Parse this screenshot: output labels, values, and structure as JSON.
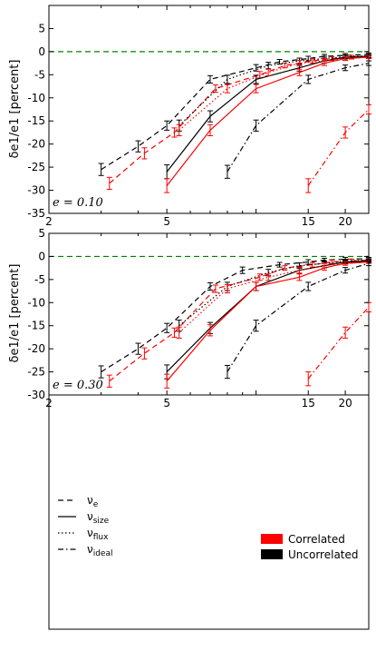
{
  "chart_data": [
    {
      "type": "line",
      "annotation": "e = 0.10",
      "ylabel": "δe1/e1 [percent]",
      "xscale": "log",
      "xlim": [
        2,
        24
      ],
      "ylim": [
        -35,
        10
      ],
      "xticks": [
        2,
        5,
        15,
        20
      ],
      "yticks": [
        -35,
        -30,
        -25,
        -20,
        -15,
        -10,
        -5,
        0,
        5
      ],
      "reference_line": {
        "y": 0,
        "color": "#008000",
        "style": "dashed"
      },
      "series": [
        {
          "name": "νe",
          "condition": "Uncorrelated",
          "style": "dashed",
          "color": "#000000",
          "x": [
            3,
            4,
            5,
            7,
            10,
            12,
            15,
            17,
            20,
            24
          ],
          "y": [
            -25.5,
            -20.5,
            -16,
            -6,
            -3.5,
            -2.2,
            -1.5,
            -1,
            -0.8,
            -0.6
          ],
          "err": [
            1.3,
            1.2,
            1.0,
            0.8,
            0.7,
            0.5,
            0.5,
            0.4,
            0.4,
            0.3
          ]
        },
        {
          "name": "νe",
          "condition": "Correlated",
          "style": "dashed",
          "color": "#ff0000",
          "x": [
            3.2,
            4.2,
            5.3,
            7.3,
            10.3,
            12.5,
            15.5,
            18,
            21,
            24
          ],
          "y": [
            -28.5,
            -22,
            -17.5,
            -8,
            -5,
            -3,
            -2,
            -1.5,
            -1.2,
            -1
          ],
          "err": [
            1.3,
            1.2,
            1.0,
            0.8,
            0.7,
            0.5,
            0.5,
            0.4,
            0.4,
            0.3
          ]
        },
        {
          "name": "νsize",
          "condition": "Uncorrelated",
          "style": "solid",
          "color": "#000000",
          "x": [
            5,
            7,
            10,
            14,
            17,
            20,
            24
          ],
          "y": [
            -26,
            -14,
            -6,
            -3.5,
            -2,
            -1.2,
            -1
          ],
          "err": [
            1.5,
            1.2,
            0.9,
            0.7,
            0.5,
            0.4,
            0.3
          ]
        },
        {
          "name": "νsize",
          "condition": "Correlated",
          "style": "solid",
          "color": "#ff0000",
          "x": [
            5,
            7,
            10,
            14,
            17,
            20,
            24
          ],
          "y": [
            -29,
            -17,
            -8,
            -4.5,
            -2.5,
            -1.5,
            -1.2
          ],
          "err": [
            1.5,
            1.2,
            0.9,
            0.7,
            0.5,
            0.4,
            0.3
          ]
        },
        {
          "name": "νflux",
          "condition": "Uncorrelated",
          "style": "dotted",
          "color": "#000000",
          "x": [
            5.5,
            8,
            11,
            14,
            17,
            20,
            24
          ],
          "y": [
            -16,
            -6,
            -3,
            -2,
            -1.5,
            -1.1,
            -0.9
          ],
          "err": [
            1.2,
            0.9,
            0.7,
            0.6,
            0.5,
            0.4,
            0.3
          ]
        },
        {
          "name": "νflux",
          "condition": "Correlated",
          "style": "dotted",
          "color": "#ff0000",
          "x": [
            5.5,
            8,
            11,
            14,
            17,
            20,
            24
          ],
          "y": [
            -17,
            -8,
            -4.5,
            -2.5,
            -2,
            -1.5,
            -1.2
          ],
          "err": [
            1.2,
            0.9,
            0.7,
            0.6,
            0.5,
            0.4,
            0.3
          ]
        },
        {
          "name": "νideal",
          "condition": "Uncorrelated",
          "style": "dashdot",
          "color": "#000000",
          "x": [
            8,
            10,
            15,
            20,
            24
          ],
          "y": [
            -26,
            -16,
            -6,
            -3.5,
            -2.5
          ],
          "err": [
            1.4,
            1.2,
            0.9,
            0.6,
            0.5
          ]
        },
        {
          "name": "νideal",
          "condition": "Correlated",
          "style": "dashdot",
          "color": "#ff0000",
          "x": [
            15,
            20,
            24
          ],
          "y": [
            -29,
            -17.5,
            -12.5
          ],
          "err": [
            1.5,
            1.2,
            1.0
          ]
        }
      ]
    },
    {
      "type": "line",
      "annotation": "e = 0.30",
      "ylabel": "δe1/e1 [percent]",
      "xscale": "log",
      "xlim": [
        2,
        24
      ],
      "ylim": [
        -30,
        5
      ],
      "xticks": [
        2,
        5,
        15,
        20
      ],
      "yticks": [
        -30,
        -25,
        -20,
        -15,
        -10,
        -5,
        0,
        5
      ],
      "reference_line": {
        "y": 0,
        "color": "#008000",
        "style": "dashed"
      },
      "series": [
        {
          "name": "νe",
          "condition": "Uncorrelated",
          "style": "dashed",
          "color": "#000000",
          "x": [
            3,
            4,
            5,
            7,
            9,
            12,
            15,
            17,
            20,
            24
          ],
          "y": [
            -25,
            -20,
            -15.5,
            -6.5,
            -3,
            -1.8,
            -1.2,
            -0.8,
            -0.6,
            -0.5
          ],
          "err": [
            1.3,
            1.2,
            1.0,
            0.8,
            0.7,
            0.5,
            0.5,
            0.4,
            0.4,
            0.3
          ]
        },
        {
          "name": "νe",
          "condition": "Correlated",
          "style": "dashed",
          "color": "#ff0000",
          "x": [
            3.2,
            4.2,
            5.3,
            7.3,
            10.3,
            12.5,
            15.5,
            18,
            21,
            24
          ],
          "y": [
            -27,
            -21,
            -16.5,
            -7,
            -4.5,
            -2.5,
            -1.8,
            -1.2,
            -1,
            -0.8
          ],
          "err": [
            1.3,
            1.2,
            1.0,
            0.8,
            0.7,
            0.5,
            0.5,
            0.4,
            0.4,
            0.3
          ]
        },
        {
          "name": "νsize",
          "condition": "Uncorrelated",
          "style": "solid",
          "color": "#000000",
          "x": [
            5,
            7,
            10,
            14,
            17,
            20,
            24
          ],
          "y": [
            -25,
            -15.5,
            -6.5,
            -3,
            -2,
            -1.2,
            -1
          ],
          "err": [
            1.5,
            1.2,
            0.9,
            0.7,
            0.5,
            0.4,
            0.3
          ]
        },
        {
          "name": "νsize",
          "condition": "Correlated",
          "style": "solid",
          "color": "#ff0000",
          "x": [
            5,
            7,
            10,
            14,
            17,
            20,
            24
          ],
          "y": [
            -27,
            -16,
            -6.5,
            -4.5,
            -2.5,
            -1.5,
            -1.2
          ],
          "err": [
            1.5,
            1.2,
            0.9,
            0.7,
            0.5,
            0.4,
            0.3
          ]
        },
        {
          "name": "νflux",
          "condition": "Uncorrelated",
          "style": "dotted",
          "color": "#000000",
          "x": [
            5.5,
            8,
            11,
            14,
            17,
            20,
            24
          ],
          "y": [
            -15,
            -6.5,
            -3.5,
            -2,
            -1.5,
            -1,
            -0.8
          ],
          "err": [
            1.2,
            0.9,
            0.7,
            0.6,
            0.5,
            0.4,
            0.3
          ]
        },
        {
          "name": "νflux",
          "condition": "Correlated",
          "style": "dotted",
          "color": "#ff0000",
          "x": [
            5.5,
            8,
            11,
            14,
            17,
            20,
            24
          ],
          "y": [
            -16.5,
            -7,
            -4.5,
            -3,
            -2,
            -1.5,
            -1.2
          ],
          "err": [
            1.2,
            0.9,
            0.7,
            0.6,
            0.5,
            0.4,
            0.3
          ]
        },
        {
          "name": "νideal",
          "condition": "Uncorrelated",
          "style": "dashdot",
          "color": "#000000",
          "x": [
            8,
            10,
            15,
            20,
            24
          ],
          "y": [
            -25,
            -15,
            -6.5,
            -3,
            -1.5
          ],
          "err": [
            1.4,
            1.2,
            0.9,
            0.6,
            0.5
          ]
        },
        {
          "name": "νideal",
          "condition": "Correlated",
          "style": "dashdot",
          "color": "#ff0000",
          "x": [
            15,
            20,
            24
          ],
          "y": [
            -26.5,
            -16.5,
            -11
          ],
          "err": [
            1.5,
            1.2,
            1.0
          ]
        }
      ]
    }
  ],
  "legend": {
    "placement": "bottom",
    "styles": [
      {
        "label": "νe",
        "base": "ν",
        "sub": "e",
        "style": "dashed"
      },
      {
        "label": "νsize",
        "base": "ν",
        "sub": "size",
        "style": "solid"
      },
      {
        "label": "νflux",
        "base": "ν",
        "sub": "flux",
        "style": "dotted"
      },
      {
        "label": "νideal",
        "base": "ν",
        "sub": "ideal",
        "style": "dashdot"
      }
    ],
    "conditions": [
      {
        "label": "Correlated",
        "color": "#ff0000"
      },
      {
        "label": "Uncorrelated",
        "color": "#000000"
      }
    ]
  }
}
